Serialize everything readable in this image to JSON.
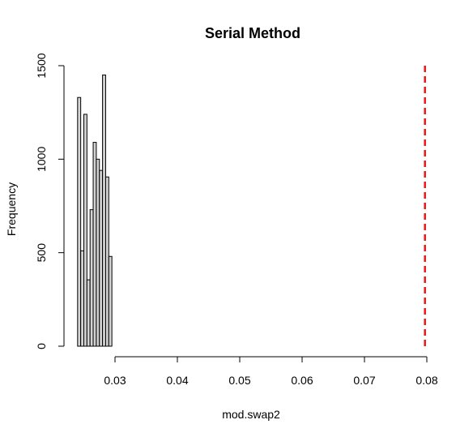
{
  "chart_data": {
    "type": "bar",
    "subtype": "histogram",
    "title": "Serial Method",
    "xlabel": "mod.swap2",
    "ylabel": "Frequency",
    "xlim": [
      0.0235,
      0.081
    ],
    "ylim": [
      0,
      1500
    ],
    "x_ticks": [
      0.03,
      0.04,
      0.05,
      0.06,
      0.07,
      0.08
    ],
    "x_tick_labels": [
      "0.03",
      "0.04",
      "0.05",
      "0.06",
      "0.07",
      "0.08"
    ],
    "y_ticks": [
      0,
      500,
      1000,
      1500
    ],
    "y_tick_labels": [
      "0",
      "500",
      "1000",
      "1500"
    ],
    "bin_width": 0.0005,
    "bins": [
      {
        "start": 0.024,
        "end": 0.0245,
        "count": 1330
      },
      {
        "start": 0.0245,
        "end": 0.025,
        "count": 510
      },
      {
        "start": 0.025,
        "end": 0.0255,
        "count": 1240
      },
      {
        "start": 0.0255,
        "end": 0.026,
        "count": 355
      },
      {
        "start": 0.026,
        "end": 0.0265,
        "count": 730
      },
      {
        "start": 0.0265,
        "end": 0.027,
        "count": 1090
      },
      {
        "start": 0.027,
        "end": 0.0275,
        "count": 1000
      },
      {
        "start": 0.0275,
        "end": 0.028,
        "count": 940
      },
      {
        "start": 0.028,
        "end": 0.0285,
        "count": 1450
      },
      {
        "start": 0.0285,
        "end": 0.029,
        "count": 905
      },
      {
        "start": 0.029,
        "end": 0.0295,
        "count": 480
      }
    ],
    "bar_fill": "#d3d3d3",
    "bar_stroke": "#000000",
    "reference_line": {
      "x": 0.0797,
      "color": "#e31a1c",
      "style": "dashed"
    },
    "grid": false,
    "legend": "none"
  }
}
